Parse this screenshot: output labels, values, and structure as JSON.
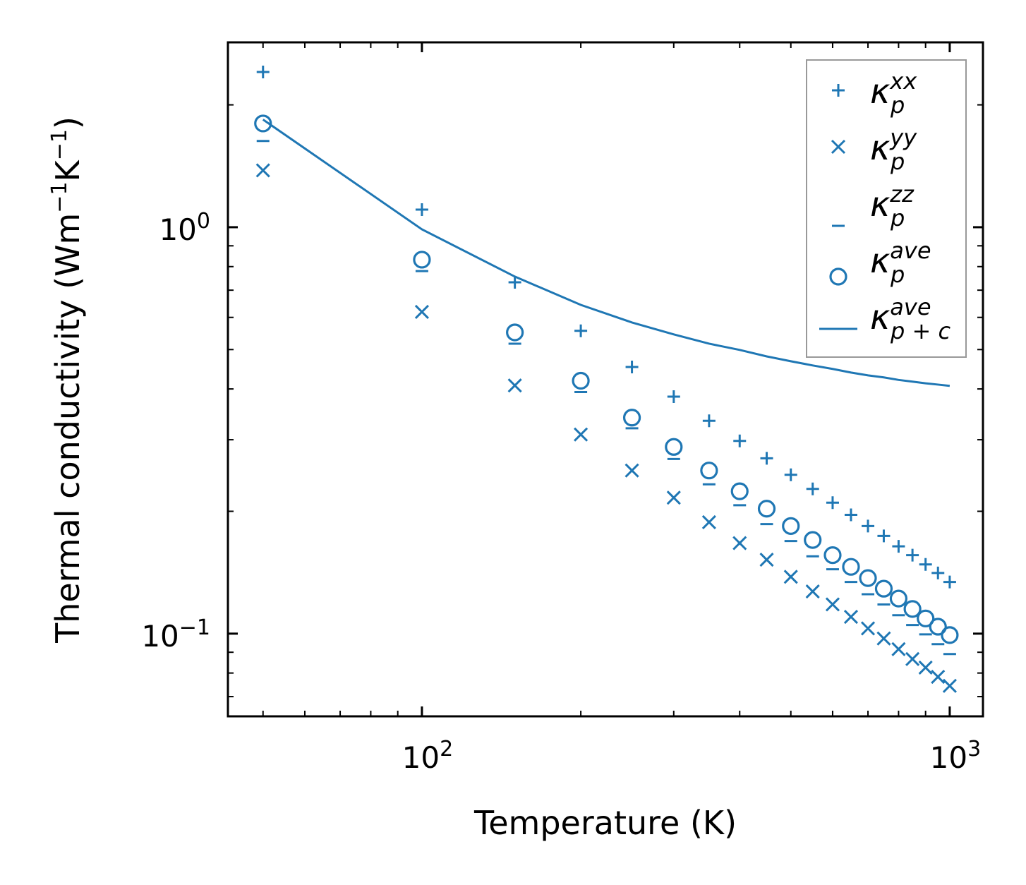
{
  "chart_data": {
    "type": "scatter",
    "xscale": "log",
    "yscale": "log",
    "xlabel": "Temperature (K)",
    "ylabel": "Thermal conductivity (Wm⁻¹K⁻¹)",
    "ylabel_parts": {
      "pre": "Thermal conductivity (Wm",
      "e1": "−1",
      "mid": "K",
      "e2": "−1",
      "post": ")"
    },
    "xlim": [
      42.9,
      1156
    ],
    "ylim": [
      0.0626,
      2.85
    ],
    "xticks": [
      {
        "value": 100,
        "base": "10",
        "exp": "2"
      },
      {
        "value": 1000,
        "base": "10",
        "exp": "3"
      }
    ],
    "yticks": [
      {
        "value": 1,
        "base": "10",
        "exp": "0"
      },
      {
        "value": 0.1,
        "base": "10",
        "exp": "−1"
      }
    ],
    "grid": false,
    "legend_position": "top-right",
    "color": "#1f77b4",
    "x": [
      50,
      100,
      150,
      200,
      250,
      300,
      350,
      400,
      450,
      500,
      550,
      600,
      650,
      700,
      750,
      800,
      850,
      900,
      950,
      1000
    ],
    "series": [
      {
        "name": "kappa_p^xx",
        "label": {
          "sym": "κ",
          "sub": "p",
          "sup": "xx"
        },
        "marker": "plus",
        "values": [
          2.41,
          1.105,
          0.732,
          0.556,
          0.453,
          0.383,
          0.334,
          0.298,
          0.27,
          0.246,
          0.227,
          0.21,
          0.196,
          0.184,
          0.174,
          0.164,
          0.156,
          0.148,
          0.141,
          0.134
        ]
      },
      {
        "name": "kappa_p^yy",
        "label": {
          "sym": "κ",
          "sub": "p",
          "sup": "yy"
        },
        "marker": "x",
        "values": [
          1.38,
          0.619,
          0.408,
          0.309,
          0.252,
          0.216,
          0.188,
          0.167,
          0.152,
          0.138,
          0.127,
          0.118,
          0.11,
          0.103,
          0.0973,
          0.0916,
          0.0866,
          0.0825,
          0.0783,
          0.0744
        ]
      },
      {
        "name": "kappa_p^zz",
        "label": {
          "sym": "κ",
          "sub": "p",
          "sup": "zz"
        },
        "marker": "hline",
        "values": [
          1.63,
          0.78,
          0.517,
          0.393,
          0.32,
          0.269,
          0.233,
          0.207,
          0.186,
          0.169,
          0.155,
          0.144,
          0.134,
          0.125,
          0.118,
          0.111,
          0.105,
          0.0996,
          0.0942,
          0.0891
        ]
      },
      {
        "name": "kappa_p^ave",
        "label": {
          "sym": "κ",
          "sub": "p",
          "sup": "ave"
        },
        "marker": "circle",
        "values": [
          1.8,
          0.832,
          0.551,
          0.419,
          0.34,
          0.288,
          0.252,
          0.224,
          0.203,
          0.184,
          0.17,
          0.156,
          0.146,
          0.137,
          0.129,
          0.122,
          0.115,
          0.109,
          0.104,
          0.0992
        ]
      },
      {
        "name": "kappa_p+c^ave",
        "label": {
          "sym": "κ",
          "sub": "p + c",
          "sup": "ave"
        },
        "marker": "line",
        "values": [
          1.84,
          0.988,
          0.756,
          0.644,
          0.583,
          0.545,
          0.517,
          0.499,
          0.481,
          0.468,
          0.457,
          0.448,
          0.439,
          0.432,
          0.427,
          0.421,
          0.417,
          0.413,
          0.41,
          0.407
        ]
      }
    ]
  }
}
